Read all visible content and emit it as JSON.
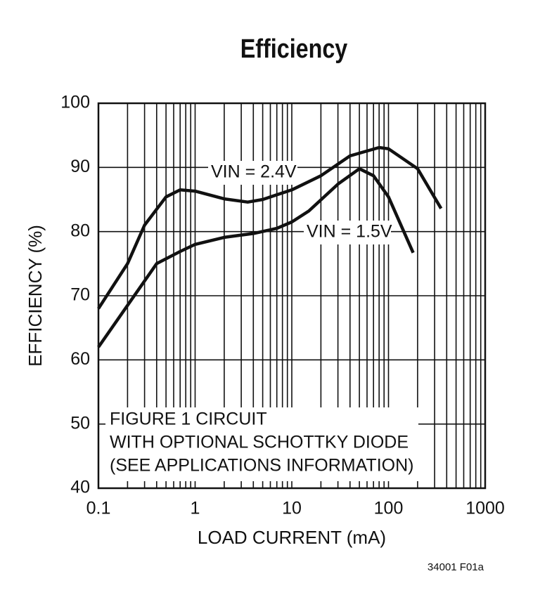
{
  "chart_data": {
    "type": "line",
    "title": "Efficiency",
    "x_label": "LOAD CURRENT (mA)",
    "y_label": "EFFICIENCY (%)",
    "log_x": true,
    "grid": true,
    "minor_grid": true,
    "xlim": [
      0.1,
      1000
    ],
    "xticks": [
      0.1,
      1,
      10,
      100,
      1000
    ],
    "ylim": [
      40,
      100
    ],
    "yticks": [
      40,
      50,
      60,
      70,
      80,
      90,
      100
    ],
    "series": [
      {
        "name": "VIN = 2.4V",
        "color": "#111111",
        "x": [
          0.1,
          0.2,
          0.3,
          0.5,
          0.7,
          1,
          2,
          3.5,
          5,
          10,
          20,
          40,
          80,
          100,
          200,
          350
        ],
        "values": [
          68,
          75,
          81,
          85.4,
          86.5,
          86.3,
          85.1,
          84.6,
          85,
          86.5,
          88.7,
          91.8,
          93.1,
          92.9,
          89.8,
          83.6
        ]
      },
      {
        "name": "VIN = 1.5V",
        "color": "#111111",
        "x": [
          0.1,
          0.2,
          0.4,
          0.7,
          1,
          2,
          4,
          7,
          10,
          15,
          30,
          50,
          70,
          100,
          180
        ],
        "values": [
          62,
          68.5,
          75,
          76.9,
          78,
          79.1,
          79.7,
          80.5,
          81.5,
          83.2,
          87.4,
          89.8,
          88.7,
          85.4,
          76.7
        ]
      }
    ],
    "annotation": [
      "FIGURE 1 CIRCUIT",
      "WITH OPTIONAL SCHOTTKY DIODE",
      "(SEE APPLICATIONS INFORMATION)"
    ],
    "footnote": "34001 F01a"
  }
}
